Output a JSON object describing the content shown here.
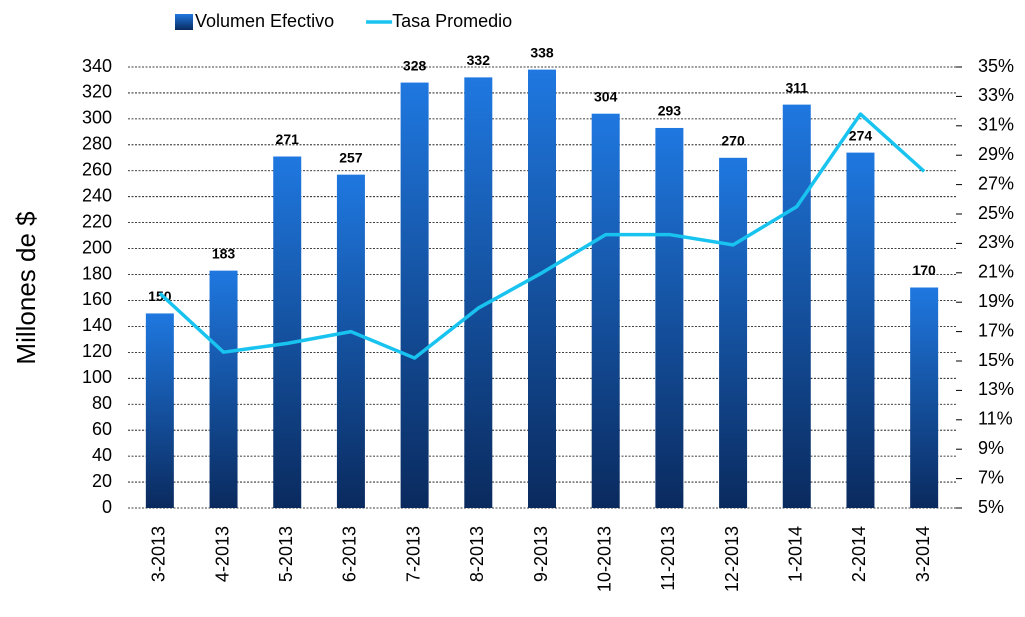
{
  "chart_data": {
    "type": "bar_line",
    "y_label": "Millones de $",
    "categories": [
      "3-2013",
      "4-2013",
      "5-2013",
      "6-2013",
      "7-2013",
      "8-2013",
      "9-2013",
      "10-2013",
      "11-2013",
      "12-2013",
      "1-2014",
      "2-2014",
      "3-2014"
    ],
    "series": [
      {
        "name": "Volumen Efectivo",
        "type": "bar",
        "color": "#1f6fd6",
        "axis": "y",
        "values": [
          150,
          183,
          271,
          257,
          328,
          332,
          338,
          304,
          293,
          270,
          311,
          274,
          170
        ]
      },
      {
        "name": "Tasa Promedio",
        "type": "line",
        "color": "#19c3f0",
        "axis": "y2",
        "values": [
          19.6,
          15.6,
          16.2,
          17.0,
          15.2,
          18.6,
          21.0,
          23.6,
          23.6,
          22.9,
          25.5,
          31.8,
          27.9
        ]
      }
    ],
    "ylim": [
      0,
      340
    ],
    "yticks": [
      0,
      20,
      40,
      60,
      80,
      100,
      120,
      140,
      160,
      180,
      200,
      220,
      240,
      260,
      280,
      300,
      320,
      340
    ],
    "y2lim": [
      5,
      35
    ],
    "y2ticks": [
      {
        "value": 5,
        "label": "5%"
      },
      {
        "value": 7,
        "label": "7%"
      },
      {
        "value": 9,
        "label": "9%"
      },
      {
        "value": 11,
        "label": "11%"
      },
      {
        "value": 13,
        "label": "13%"
      },
      {
        "value": 15,
        "label": "15%"
      },
      {
        "value": 17,
        "label": "17%"
      },
      {
        "value": 19,
        "label": "19%"
      },
      {
        "value": 21,
        "label": "21%"
      },
      {
        "value": 23,
        "label": "23%"
      },
      {
        "value": 25,
        "label": "25%"
      },
      {
        "value": 27,
        "label": "27%"
      },
      {
        "value": 29,
        "label": "29%"
      },
      {
        "value": 31,
        "label": "31%"
      },
      {
        "value": 33,
        "label": "33%"
      },
      {
        "value": 35,
        "label": "35%"
      }
    ],
    "grid": true
  }
}
